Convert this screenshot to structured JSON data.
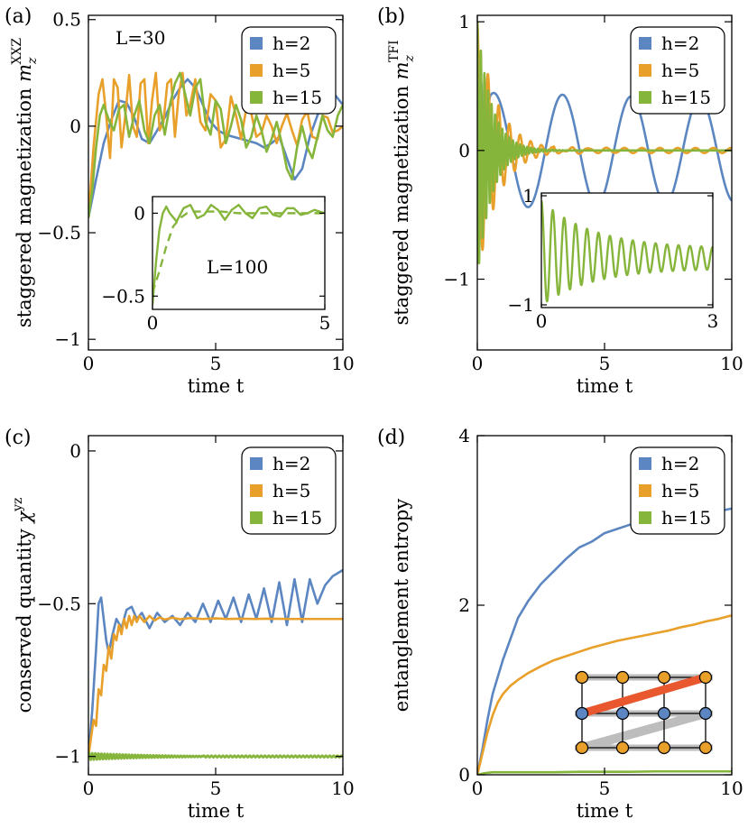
{
  "colors": {
    "blue": "#5b86c1",
    "orange": "#e8a02a",
    "green": "#86b53c",
    "red": "#e8572e",
    "gray": "#bdbdbd"
  },
  "chart_data": [
    {
      "id": "a",
      "type": "line",
      "panel_label": "(a)",
      "ylabel_main": "staggered magnetization ",
      "ylabel_sym": "m",
      "ylabel_sub": "z",
      "ylabel_sup": "XXZ",
      "xlabel": "time t",
      "annotation": "L=30",
      "xlim": [
        0,
        10
      ],
      "ylim": [
        -1.05,
        0.52
      ],
      "xticks": [
        0,
        5,
        10
      ],
      "xtick_labels": [
        "0",
        "5",
        "10"
      ],
      "yticks": [
        -1,
        -0.5,
        0,
        0.5
      ],
      "ytick_labels": [
        "−1",
        "−0.5",
        "0",
        "0.5"
      ],
      "legend": {
        "position": "top-right",
        "entries": [
          "h=2",
          "h=5",
          "h=15"
        ]
      },
      "series": [
        {
          "name": "h=2",
          "color": "blue",
          "x": [
            0,
            0.3,
            0.6,
            0.9,
            1.2,
            1.5,
            1.8,
            2.1,
            2.4,
            2.7,
            3.0,
            3.3,
            3.6,
            3.9,
            4.2,
            4.5,
            4.8,
            5.1,
            5.4,
            5.7,
            6.0,
            6.3,
            6.6,
            6.9,
            7.2,
            7.5,
            7.8,
            8.1,
            8.4,
            8.7,
            9.0,
            9.3,
            9.6,
            10
          ],
          "y": [
            -0.43,
            -0.25,
            -0.08,
            0.03,
            0.12,
            0.11,
            0.04,
            -0.06,
            -0.08,
            -0.02,
            0.04,
            0.12,
            0.18,
            0.22,
            0.18,
            0.1,
            0.02,
            -0.02,
            -0.04,
            -0.05,
            -0.06,
            -0.07,
            -0.08,
            -0.1,
            -0.08,
            -0.05,
            -0.15,
            -0.25,
            -0.2,
            -0.05,
            0.05,
            0.13,
            0.16,
            0.1
          ]
        },
        {
          "name": "h=5",
          "color": "orange",
          "x": [
            0,
            0.2,
            0.4,
            0.55,
            0.7,
            0.85,
            1.0,
            1.15,
            1.3,
            1.45,
            1.6,
            1.75,
            1.9,
            2.05,
            2.2,
            2.35,
            2.5,
            2.65,
            2.8,
            2.95,
            3.1,
            3.25,
            3.4,
            3.55,
            3.7,
            3.85,
            4.0,
            4.2,
            4.4,
            4.6,
            4.8,
            5.0,
            5.2,
            5.4,
            5.6,
            5.8,
            6.0,
            6.2,
            6.4,
            6.6,
            6.8,
            7.0,
            7.2,
            7.4,
            7.6,
            7.8,
            8.0,
            8.2,
            8.4,
            8.6,
            8.8,
            9.0,
            9.2,
            9.4,
            9.6,
            9.8,
            10
          ],
          "y": [
            -0.43,
            -0.1,
            0.15,
            0.22,
            0.05,
            -0.15,
            0.22,
            0.18,
            -0.1,
            0.05,
            0.24,
            0.0,
            -0.05,
            0.2,
            0.22,
            -0.08,
            0.12,
            0.25,
            -0.02,
            0.02,
            0.2,
            0.22,
            -0.05,
            0.15,
            0.25,
            0.05,
            0.1,
            0.22,
            0.02,
            -0.02,
            0.15,
            0.12,
            -0.1,
            -0.06,
            0.14,
            0.05,
            -0.06,
            0.08,
            0.06,
            -0.05,
            -0.03,
            0.05,
            0.0,
            -0.08,
            0.0,
            0.06,
            -0.02,
            -0.09,
            0.03,
            0.07,
            -0.05,
            -0.06,
            0.05,
            0.04,
            -0.03,
            -0.02,
            0.0
          ]
        },
        {
          "name": "h=15",
          "color": "green",
          "x": [
            0,
            0.15,
            0.3,
            0.45,
            0.6,
            0.8,
            1.0,
            1.2,
            1.4,
            1.6,
            1.8,
            2.0,
            2.2,
            2.4,
            2.6,
            2.8,
            3.0,
            3.2,
            3.4,
            3.6,
            3.8,
            4.0,
            4.2,
            4.4,
            4.6,
            4.8,
            5.0,
            5.2,
            5.4,
            5.6,
            5.8,
            6.0,
            6.2,
            6.4,
            6.6,
            6.8,
            7.0,
            7.2,
            7.4,
            7.6,
            7.8,
            8.0,
            8.2,
            8.4,
            8.6,
            8.8,
            9.0,
            9.2,
            9.4,
            9.6,
            9.8,
            10
          ],
          "y": [
            -0.43,
            -0.3,
            -0.1,
            0.05,
            0.1,
            0.03,
            -0.02,
            0.08,
            0.1,
            -0.05,
            0.05,
            0.12,
            -0.02,
            -0.08,
            0.05,
            0.1,
            -0.04,
            0.1,
            0.2,
            0.25,
            0.15,
            0.05,
            0.18,
            0.22,
            0.02,
            -0.04,
            0.12,
            0.08,
            -0.08,
            0.0,
            0.1,
            0.03,
            -0.1,
            -0.05,
            0.05,
            -0.02,
            -0.12,
            -0.06,
            0.02,
            -0.08,
            -0.2,
            -0.25,
            -0.1,
            0.0,
            -0.1,
            -0.15,
            -0.05,
            0.05,
            -0.02,
            -0.05,
            0.05,
            0.1
          ]
        }
      ],
      "inset": {
        "annotation": "L=100",
        "xlim": [
          0,
          5
        ],
        "ylim": [
          -0.58,
          0.1
        ],
        "xticks": [
          0,
          5
        ],
        "xtick_labels": [
          "0",
          "5"
        ],
        "yticks": [
          -0.5,
          0
        ],
        "ytick_labels": [
          "−0.5",
          "0"
        ],
        "series": [
          {
            "color": "green",
            "style": "solid",
            "x": [
              0,
              0.1,
              0.2,
              0.3,
              0.4,
              0.5,
              0.7,
              0.9,
              1.1,
              1.3,
              1.5,
              1.7,
              1.9,
              2.1,
              2.3,
              2.5,
              2.7,
              2.9,
              3.1,
              3.3,
              3.5,
              3.7,
              3.9,
              4.1,
              4.3,
              4.5,
              4.7,
              5
            ],
            "y": [
              -0.55,
              -0.3,
              -0.1,
              0.0,
              0.04,
              0.0,
              -0.05,
              0.03,
              0.05,
              -0.03,
              -0.01,
              0.05,
              0.02,
              -0.04,
              0.02,
              0.05,
              0.0,
              -0.03,
              0.03,
              0.04,
              -0.01,
              -0.02,
              0.03,
              0.03,
              -0.01,
              0.0,
              0.02,
              0.0
            ]
          },
          {
            "color": "green",
            "style": "dashed",
            "x": [
              0,
              0.2,
              0.4,
              0.6,
              0.8,
              1.0,
              1.2,
              1.5,
              2.0,
              2.5,
              3.0,
              3.5,
              4.0,
              4.5,
              5
            ],
            "y": [
              -0.48,
              -0.35,
              -0.2,
              -0.08,
              -0.03,
              0.0,
              0.01,
              0.01,
              0.01,
              0.0,
              0.0,
              0.0,
              0.0,
              0.0,
              0.0
            ]
          }
        ]
      }
    },
    {
      "id": "b",
      "type": "line",
      "panel_label": "(b)",
      "ylabel_main": "staggered magnetization ",
      "ylabel_sym": "m",
      "ylabel_sub": "z",
      "ylabel_sup": "TFI",
      "xlabel": "time t",
      "xlim": [
        0,
        10
      ],
      "ylim": [
        -1.55,
        1.05
      ],
      "xticks": [
        0,
        5,
        10
      ],
      "xtick_labels": [
        "0",
        "5",
        "10"
      ],
      "yticks": [
        -1,
        0,
        1
      ],
      "ytick_labels": [
        "−1",
        "0",
        "1"
      ],
      "legend": {
        "position": "top-right",
        "entries": [
          "h=2",
          "h=5",
          "h=15"
        ]
      },
      "series": [
        {
          "name": "h=2",
          "color": "blue",
          "fn": "cos",
          "amp": 0.45,
          "amp_end": 0.4,
          "period": 2.7,
          "t0": 0.1
        },
        {
          "name": "h=5",
          "color": "orange",
          "fn": "damped",
          "amp": 1.0,
          "decay": 0.8,
          "period": 0.42
        },
        {
          "name": "h=15",
          "color": "green",
          "fn": "damped",
          "amp": 1.0,
          "decay": 0.55,
          "period": 0.14
        }
      ],
      "inset": {
        "xlim": [
          0,
          3
        ],
        "ylim": [
          -1.05,
          1.05
        ],
        "xticks": [
          0,
          3
        ],
        "xtick_labels": [
          "0",
          "3"
        ],
        "yticks": [
          -1,
          1
        ],
        "ytick_labels": [
          "−1",
          "1"
        ],
        "series": [
          {
            "color": "green",
            "fn": "inset_decay"
          }
        ]
      }
    },
    {
      "id": "c",
      "type": "line",
      "panel_label": "(c)",
      "ylabel_main": "conserved quantity ",
      "ylabel_sym": "χ",
      "ylabel_sup": "yz",
      "xlabel": "time t",
      "xlim": [
        0,
        10
      ],
      "ylim": [
        -1.06,
        0.05
      ],
      "xticks": [
        0,
        5,
        10
      ],
      "xtick_labels": [
        "0",
        "5",
        "10"
      ],
      "yticks": [
        -1,
        -0.5,
        0
      ],
      "ytick_labels": [
        "−1",
        "−0.5",
        "0"
      ],
      "legend": {
        "position": "top-right",
        "entries": [
          "h=2",
          "h=5",
          "h=15"
        ]
      },
      "series": [
        {
          "name": "h=2",
          "color": "blue",
          "x": [
            0,
            0.15,
            0.3,
            0.4,
            0.5,
            0.6,
            0.7,
            0.8,
            0.95,
            1.1,
            1.3,
            1.5,
            1.7,
            1.9,
            2.1,
            2.4,
            2.7,
            3.0,
            3.3,
            3.6,
            3.9,
            4.2,
            4.5,
            4.8,
            5.1,
            5.4,
            5.7,
            6.0,
            6.3,
            6.6,
            6.9,
            7.2,
            7.5,
            7.8,
            8.1,
            8.4,
            8.7,
            9.0,
            9.3,
            9.6,
            10
          ],
          "y": [
            -1.0,
            -0.85,
            -0.65,
            -0.5,
            -0.48,
            -0.55,
            -0.62,
            -0.66,
            -0.6,
            -0.55,
            -0.58,
            -0.52,
            -0.51,
            -0.55,
            -0.53,
            -0.58,
            -0.53,
            -0.56,
            -0.54,
            -0.57,
            -0.53,
            -0.56,
            -0.5,
            -0.56,
            -0.49,
            -0.55,
            -0.48,
            -0.56,
            -0.47,
            -0.55,
            -0.45,
            -0.56,
            -0.43,
            -0.57,
            -0.42,
            -0.56,
            -0.42,
            -0.5,
            -0.44,
            -0.41,
            -0.39
          ]
        },
        {
          "name": "h=5",
          "color": "orange",
          "x": [
            0,
            0.2,
            0.3,
            0.4,
            0.5,
            0.6,
            0.7,
            0.8,
            0.9,
            1.0,
            1.1,
            1.2,
            1.3,
            1.4,
            1.5,
            1.6,
            1.7,
            1.8,
            1.9,
            2.0,
            2.2,
            2.4,
            2.6,
            2.8,
            3.0,
            3.3,
            3.6,
            4.0,
            4.5,
            5.0,
            5.5,
            6.0,
            6.5,
            7.0,
            8.0,
            9.0,
            10
          ],
          "y": [
            -1.0,
            -0.88,
            -0.9,
            -0.78,
            -0.8,
            -0.7,
            -0.72,
            -0.64,
            -0.68,
            -0.6,
            -0.62,
            -0.57,
            -0.6,
            -0.55,
            -0.58,
            -0.54,
            -0.57,
            -0.54,
            -0.56,
            -0.54,
            -0.56,
            -0.54,
            -0.555,
            -0.545,
            -0.552,
            -0.546,
            -0.551,
            -0.547,
            -0.55,
            -0.548,
            -0.55,
            -0.549,
            -0.55,
            -0.549,
            -0.55,
            -0.55,
            -0.55
          ]
        },
        {
          "name": "h=15",
          "color": "green",
          "fn": "flat_noise",
          "base": -1.0
        }
      ]
    },
    {
      "id": "d",
      "type": "line",
      "panel_label": "(d)",
      "ylabel_main": "entanglement entropy",
      "xlabel": "time t",
      "xlim": [
        0,
        10
      ],
      "ylim": [
        0,
        4
      ],
      "xticks": [
        0,
        5,
        10
      ],
      "xtick_labels": [
        "0",
        "5",
        "10"
      ],
      "yticks": [
        0,
        2,
        4
      ],
      "ytick_labels": [
        "0",
        "2",
        "4"
      ],
      "legend": {
        "position": "top-right",
        "entries": [
          "h=2",
          "h=5",
          "h=15"
        ]
      },
      "series": [
        {
          "name": "h=2",
          "color": "blue",
          "x": [
            0,
            0.2,
            0.4,
            0.6,
            0.8,
            1.0,
            1.3,
            1.6,
            2.0,
            2.5,
            3.0,
            3.5,
            4.0,
            4.5,
            5.0,
            5.5,
            6.0,
            6.5,
            7.0,
            7.5,
            8.0,
            8.5,
            9.0,
            9.5,
            10
          ],
          "y": [
            0,
            0.3,
            0.65,
            0.95,
            1.15,
            1.35,
            1.6,
            1.85,
            2.05,
            2.25,
            2.4,
            2.55,
            2.68,
            2.75,
            2.85,
            2.9,
            2.95,
            2.97,
            3.0,
            3.02,
            3.05,
            3.07,
            3.09,
            3.11,
            3.14
          ]
        },
        {
          "name": "h=5",
          "color": "orange",
          "x": [
            0,
            0.2,
            0.4,
            0.6,
            0.8,
            1.0,
            1.3,
            1.6,
            2.0,
            2.5,
            3.0,
            3.5,
            4.0,
            4.5,
            5.0,
            5.5,
            6.0,
            6.5,
            7.0,
            7.5,
            8.0,
            8.5,
            9.0,
            9.5,
            10
          ],
          "y": [
            0,
            0.25,
            0.5,
            0.7,
            0.85,
            0.95,
            1.05,
            1.12,
            1.2,
            1.28,
            1.35,
            1.4,
            1.45,
            1.5,
            1.54,
            1.58,
            1.61,
            1.64,
            1.67,
            1.7,
            1.74,
            1.77,
            1.81,
            1.84,
            1.88
          ]
        },
        {
          "name": "h=15",
          "color": "green",
          "x": [
            0,
            0.3,
            0.6,
            1,
            2,
            3,
            4,
            5,
            6,
            7,
            8,
            9,
            10
          ],
          "y": [
            0,
            0.02,
            0.03,
            0.03,
            0.03,
            0.03,
            0.035,
            0.035,
            0.035,
            0.04,
            0.04,
            0.04,
            0.04
          ]
        }
      ],
      "inset_diagram": {
        "rows": 4,
        "cols": 4,
        "top_color": "orange",
        "middle_color": "blue",
        "bottom_color": "orange",
        "bond_color": "red"
      }
    }
  ]
}
